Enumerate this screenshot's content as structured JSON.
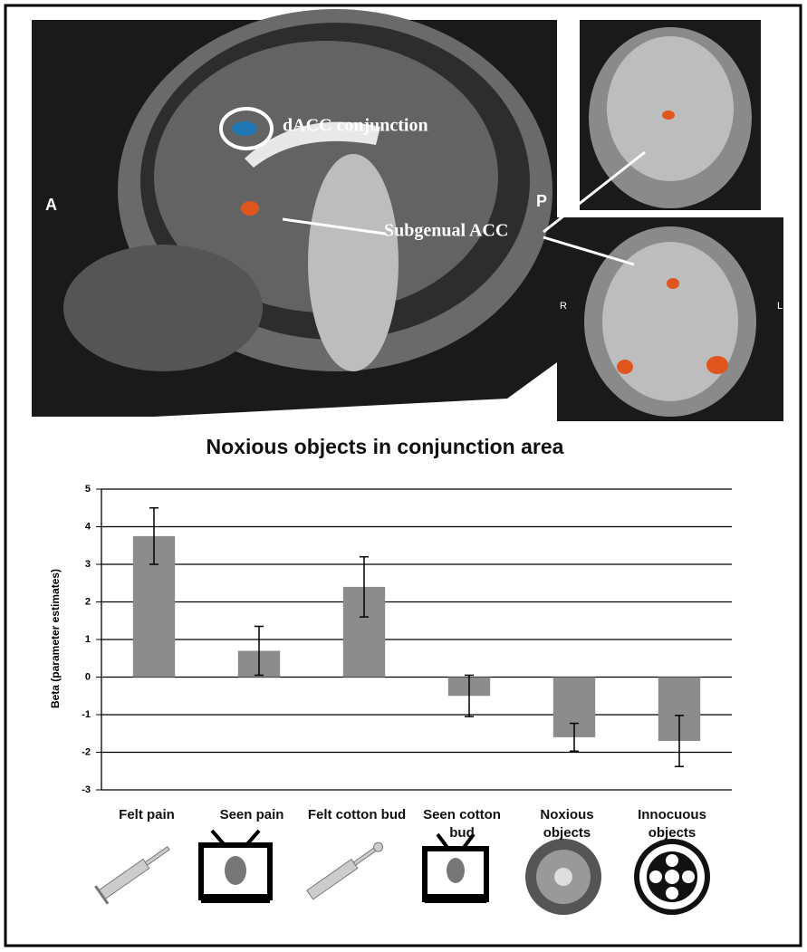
{
  "brain_labels": {
    "dacc": "dACC conjunction",
    "anterior": "A",
    "posterior": "P",
    "subgenual": "Subgenual ACC",
    "right": "R",
    "left": "L"
  },
  "chart_data": {
    "type": "bar",
    "title": "Noxious objects in conjunction area",
    "y_label": "Beta (parameter estimates)",
    "categories": [
      "Felt pain",
      "Seen pain",
      "Felt cotton bud",
      "Seen cotton bud",
      "Noxious objects",
      "Innocuous objects"
    ],
    "values": [
      3.75,
      0.7,
      2.4,
      -0.5,
      -1.6,
      -1.7
    ],
    "errors": [
      0.75,
      0.65,
      0.8,
      0.55,
      0.37,
      0.68
    ],
    "color": "#8c8c8c",
    "ylim": [
      -3,
      5
    ],
    "yticks": [
      5,
      4,
      3,
      2,
      1,
      0,
      -1,
      -2,
      -3
    ],
    "grid": true
  }
}
